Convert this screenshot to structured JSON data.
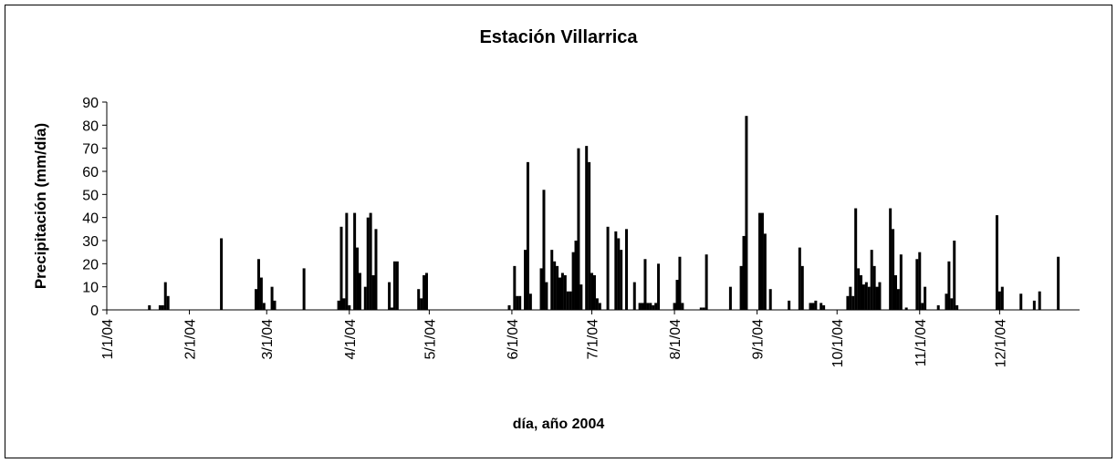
{
  "chart_data": {
    "type": "bar",
    "title": "Estación Villarrica",
    "xlabel": "día, año 2004",
    "ylabel": "Precipitación (mm/día)",
    "color": "#000000",
    "grid": false,
    "x": [
      "1/17/04",
      "1/21/04",
      "1/22/04",
      "1/23/04",
      "1/24/04",
      "2/13/04",
      "2/26/04",
      "2/27/04",
      "2/28/04",
      "2/29/04",
      "3/3/04",
      "3/4/04",
      "3/15/04",
      "3/28/04",
      "3/29/04",
      "3/30/04",
      "3/31/04",
      "4/1/04",
      "4/3/04",
      "4/4/04",
      "4/5/04",
      "4/7/04",
      "4/8/04",
      "4/9/04",
      "4/10/04",
      "4/11/04",
      "4/16/04",
      "4/17/04",
      "4/18/04",
      "4/19/04",
      "4/27/04",
      "4/28/04",
      "4/29/04",
      "4/30/04",
      "5/31/04",
      "6/2/04",
      "6/3/04",
      "6/4/04",
      "6/6/04",
      "6/7/04",
      "6/8/04",
      "6/12/04",
      "6/13/04",
      "6/14/04",
      "6/16/04",
      "6/17/04",
      "6/18/04",
      "6/19/04",
      "6/20/04",
      "6/21/04",
      "6/22/04",
      "6/23/04",
      "6/24/04",
      "6/25/04",
      "6/26/04",
      "6/27/04",
      "6/29/04",
      "6/30/04",
      "7/1/04",
      "7/2/04",
      "7/3/04",
      "7/4/04",
      "7/7/04",
      "7/10/04",
      "7/11/04",
      "7/12/04",
      "7/14/04",
      "7/17/04",
      "7/19/04",
      "7/20/04",
      "7/21/04",
      "7/22/04",
      "7/23/04",
      "7/24/04",
      "7/25/04",
      "7/26/04",
      "8/1/04",
      "8/2/04",
      "8/3/04",
      "8/4/04",
      "8/11/04",
      "8/12/04",
      "8/13/04",
      "8/22/04",
      "8/26/04",
      "8/27/04",
      "8/28/04",
      "9/2/04",
      "9/3/04",
      "9/4/04",
      "9/6/04",
      "9/13/04",
      "9/17/04",
      "9/18/04",
      "9/21/04",
      "9/22/04",
      "9/23/04",
      "9/25/04",
      "9/26/04",
      "10/5/04",
      "10/6/04",
      "10/7/04",
      "10/8/04",
      "10/9/04",
      "10/10/04",
      "10/11/04",
      "10/12/04",
      "10/13/04",
      "10/14/04",
      "10/15/04",
      "10/16/04",
      "10/17/04",
      "10/21/04",
      "10/22/04",
      "10/23/04",
      "10/24/04",
      "10/25/04",
      "10/27/04",
      "10/31/04",
      "11/1/04",
      "11/2/04",
      "11/3/04",
      "11/8/04",
      "11/11/04",
      "11/12/04",
      "11/13/04",
      "11/14/04",
      "11/15/04",
      "11/30/04",
      "12/1/04",
      "12/2/04",
      "12/9/04",
      "12/14/04",
      "12/16/04",
      "12/23/04"
    ],
    "values": [
      2,
      2,
      2,
      12,
      6,
      31,
      9,
      22,
      14,
      3,
      10,
      4,
      18,
      4,
      36,
      5,
      42,
      2,
      42,
      27,
      16,
      10,
      40,
      42,
      15,
      35,
      12,
      1,
      21,
      21,
      9,
      5,
      15,
      16,
      2,
      19,
      6,
      6,
      26,
      64,
      7,
      18,
      52,
      12,
      26,
      21,
      19,
      14,
      16,
      15,
      8,
      8,
      25,
      30,
      70,
      11,
      71,
      64,
      16,
      15,
      5,
      3,
      36,
      34,
      31,
      26,
      35,
      12,
      3,
      3,
      22,
      3,
      3,
      2,
      3,
      20,
      3,
      13,
      23,
      3,
      1,
      1,
      24,
      10,
      19,
      32,
      84,
      42,
      42,
      33,
      9,
      4,
      27,
      19,
      3,
      3,
      4,
      3,
      2,
      6,
      10,
      6,
      44,
      18,
      15,
      11,
      12,
      10,
      26,
      19,
      10,
      12,
      44,
      35,
      15,
      9,
      24,
      1,
      22,
      25,
      3,
      10,
      2,
      7,
      21,
      5,
      30,
      2,
      41,
      8,
      10,
      7,
      4,
      8,
      23
    ],
    "xlim": [
      "1/1/04",
      "12/31/04"
    ],
    "xticks": [
      "1/1/04",
      "2/1/04",
      "3/1/04",
      "4/1/04",
      "5/1/04",
      "6/1/04",
      "7/1/04",
      "8/1/04",
      "9/1/04",
      "10/1/04",
      "11/1/04",
      "12/1/04"
    ],
    "ylim": [
      0,
      90
    ],
    "yticks": [
      0,
      10,
      20,
      30,
      40,
      50,
      60,
      70,
      80,
      90
    ]
  }
}
